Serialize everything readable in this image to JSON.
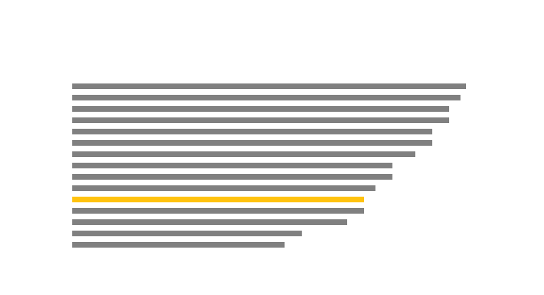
{
  "chart_data": {
    "type": "bar",
    "orientation": "horizontal",
    "title": "",
    "xlabel": "",
    "ylabel": "",
    "grid": false,
    "legend": "none",
    "xlim": [
      0,
      100
    ],
    "values": [
      100,
      98.6,
      95.7,
      95.7,
      91.4,
      91.4,
      87.1,
      81.3,
      81.3,
      77.0,
      74.1,
      74.1,
      69.8,
      58.3,
      53.9
    ],
    "highlight_index": 10,
    "colors": {
      "default": "#808080",
      "highlight": "#FFC20E"
    }
  }
}
